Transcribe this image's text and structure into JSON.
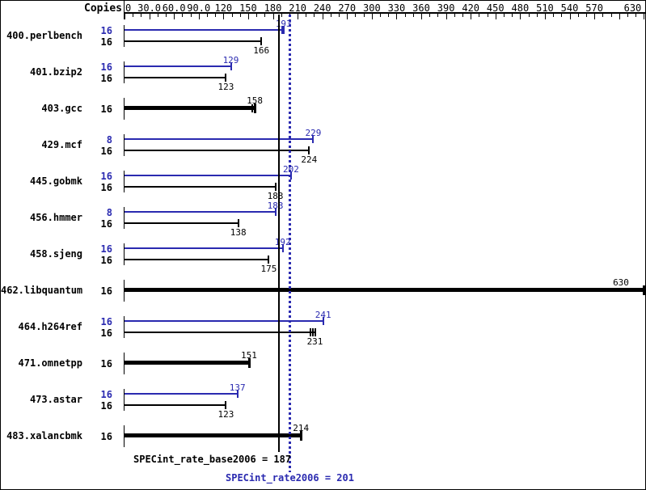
{
  "header": {
    "copies_label": "Copies"
  },
  "axis": {
    "min": 0,
    "max": 630,
    "minor_step": 10,
    "major_step": 30,
    "tick_labels": [
      {
        "v": 0,
        "t": "0"
      },
      {
        "v": 30,
        "t": "30.0"
      },
      {
        "v": 60,
        "t": "60.0"
      },
      {
        "v": 90,
        "t": "90.0"
      },
      {
        "v": 120,
        "t": "120"
      },
      {
        "v": 150,
        "t": "150"
      },
      {
        "v": 180,
        "t": "180"
      },
      {
        "v": 210,
        "t": "210"
      },
      {
        "v": 240,
        "t": "240"
      },
      {
        "v": 270,
        "t": "270"
      },
      {
        "v": 300,
        "t": "300"
      },
      {
        "v": 330,
        "t": "330"
      },
      {
        "v": 360,
        "t": "360"
      },
      {
        "v": 390,
        "t": "390"
      },
      {
        "v": 420,
        "t": "420"
      },
      {
        "v": 450,
        "t": "450"
      },
      {
        "v": 480,
        "t": "480"
      },
      {
        "v": 510,
        "t": "510"
      },
      {
        "v": 540,
        "t": "540"
      },
      {
        "v": 570,
        "t": "570"
      },
      {
        "v": 630,
        "t": "630"
      }
    ]
  },
  "colors": {
    "peak_blue": "#2a2ab0",
    "base_black": "#000000",
    "background": "#ffffff"
  },
  "summary": {
    "base_label": "SPECint_rate_base2006 = 187",
    "peak_label": "SPECint_rate2006 = 201",
    "base_value": 187,
    "peak_value": 201
  },
  "chart_data": {
    "type": "bar",
    "orientation": "horizontal",
    "title": "",
    "xlabel": "",
    "ylabel": "Copies",
    "xlim": [
      0,
      630
    ],
    "x_tick_step": 30,
    "x_minor_tick_step": 10,
    "x_label_skipped": 600,
    "reference_lines": [
      {
        "name": "SPECint_rate_base2006",
        "value": 187,
        "style": "solid",
        "color": "#000000"
      },
      {
        "name": "SPECint_rate2006",
        "value": 201,
        "style": "dotted",
        "color": "#2a2ab0"
      }
    ],
    "benchmarks": [
      {
        "name": "400.perlbench",
        "single": false,
        "peak_copies": 16,
        "peak": 193,
        "peak_marks": [
          191
        ],
        "base_copies": 16,
        "base": 166
      },
      {
        "name": "401.bzip2",
        "single": false,
        "peak_copies": 16,
        "peak": 129,
        "base_copies": 16,
        "base": 123
      },
      {
        "name": "403.gcc",
        "single": true,
        "copies": 16,
        "value": 158,
        "marks": [
          155
        ]
      },
      {
        "name": "429.mcf",
        "single": false,
        "peak_copies": 8,
        "peak": 229,
        "base_copies": 16,
        "base": 224
      },
      {
        "name": "445.gobmk",
        "single": false,
        "peak_copies": 16,
        "peak": 202,
        "base_copies": 16,
        "base": 183
      },
      {
        "name": "456.hmmer",
        "single": false,
        "peak_copies": 8,
        "peak": 183,
        "base_copies": 16,
        "base": 138
      },
      {
        "name": "458.sjeng",
        "single": false,
        "peak_copies": 16,
        "peak": 192,
        "base_copies": 16,
        "base": 175
      },
      {
        "name": "462.libquantum",
        "single": true,
        "copies": 16,
        "value": 630
      },
      {
        "name": "464.h264ref",
        "single": false,
        "peak_copies": 16,
        "peak": 241,
        "base_copies": 16,
        "base": 231,
        "base_marks": [
          226,
          229
        ]
      },
      {
        "name": "471.omnetpp",
        "single": true,
        "copies": 16,
        "value": 151
      },
      {
        "name": "473.astar",
        "single": false,
        "peak_copies": 16,
        "peak": 137,
        "base_copies": 16,
        "base": 123
      },
      {
        "name": "483.xalancbmk",
        "single": true,
        "copies": 16,
        "value": 214
      }
    ]
  }
}
